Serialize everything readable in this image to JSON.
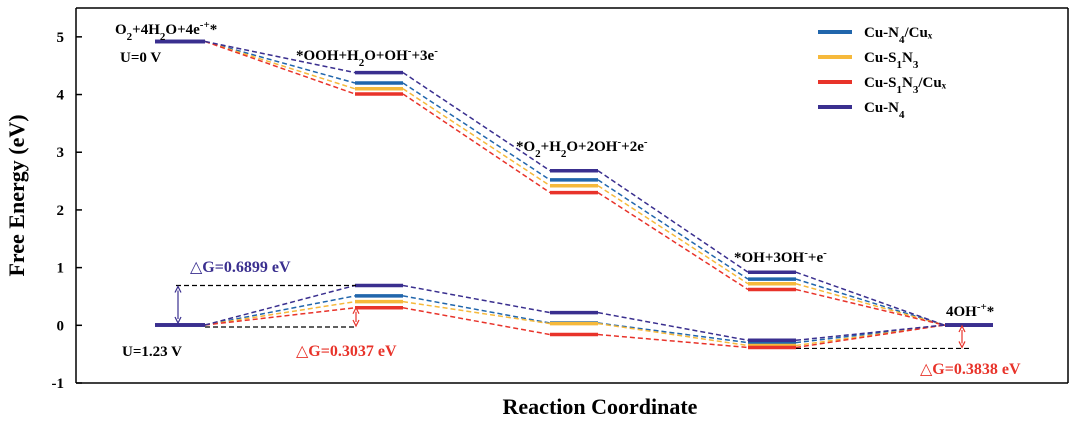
{
  "chart_data": {
    "type": "line",
    "xlabel": "Reaction Coordinate",
    "ylabel": "Free Energy (eV)",
    "ylim": [
      -1,
      5.5
    ],
    "yticks": [
      -1,
      0,
      1,
      2,
      3,
      4,
      5
    ],
    "legend_position": "top-right",
    "grid": false,
    "step_labels": [
      "O2+4H2O+4e-+*",
      "*OOH+H2O+OH-+3e-",
      "*O2+H2O+2OH-+2e-",
      "*OH+3OH-+e-",
      "4OH-+*"
    ],
    "potential_labels": [
      "U=0 V",
      "U=1.23 V"
    ],
    "series": [
      {
        "name": "Cu-N4/Cux",
        "color": "#2166ac",
        "U0": [
          4.92,
          4.2,
          2.52,
          0.8,
          0
        ],
        "U123": [
          0,
          0.51,
          0.04,
          -0.3,
          0
        ]
      },
      {
        "name": "Cu-S1N3",
        "color": "#f6b93b",
        "U0": [
          4.92,
          4.1,
          2.42,
          0.72,
          0
        ],
        "U123": [
          0,
          0.41,
          0.03,
          -0.35,
          0
        ]
      },
      {
        "name": "Cu-S1N3/Cux",
        "color": "#e8332a",
        "U0": [
          4.92,
          4.01,
          2.3,
          0.62,
          0
        ],
        "U123": [
          0,
          0.3037,
          -0.16,
          -0.3838,
          0
        ]
      },
      {
        "name": "Cu-N4",
        "color": "#3a2f8f",
        "U0": [
          4.92,
          4.38,
          2.68,
          0.92,
          0
        ],
        "U123": [
          0,
          0.6899,
          0.22,
          -0.26,
          0
        ]
      }
    ],
    "annotations": [
      {
        "text": "△G=0.6899 eV",
        "color": "#3a2f8f"
      },
      {
        "text": "△G=0.3037 eV",
        "color": "#e8332a"
      },
      {
        "text": "△G=0.3838 eV",
        "color": "#e8332a"
      }
    ]
  }
}
